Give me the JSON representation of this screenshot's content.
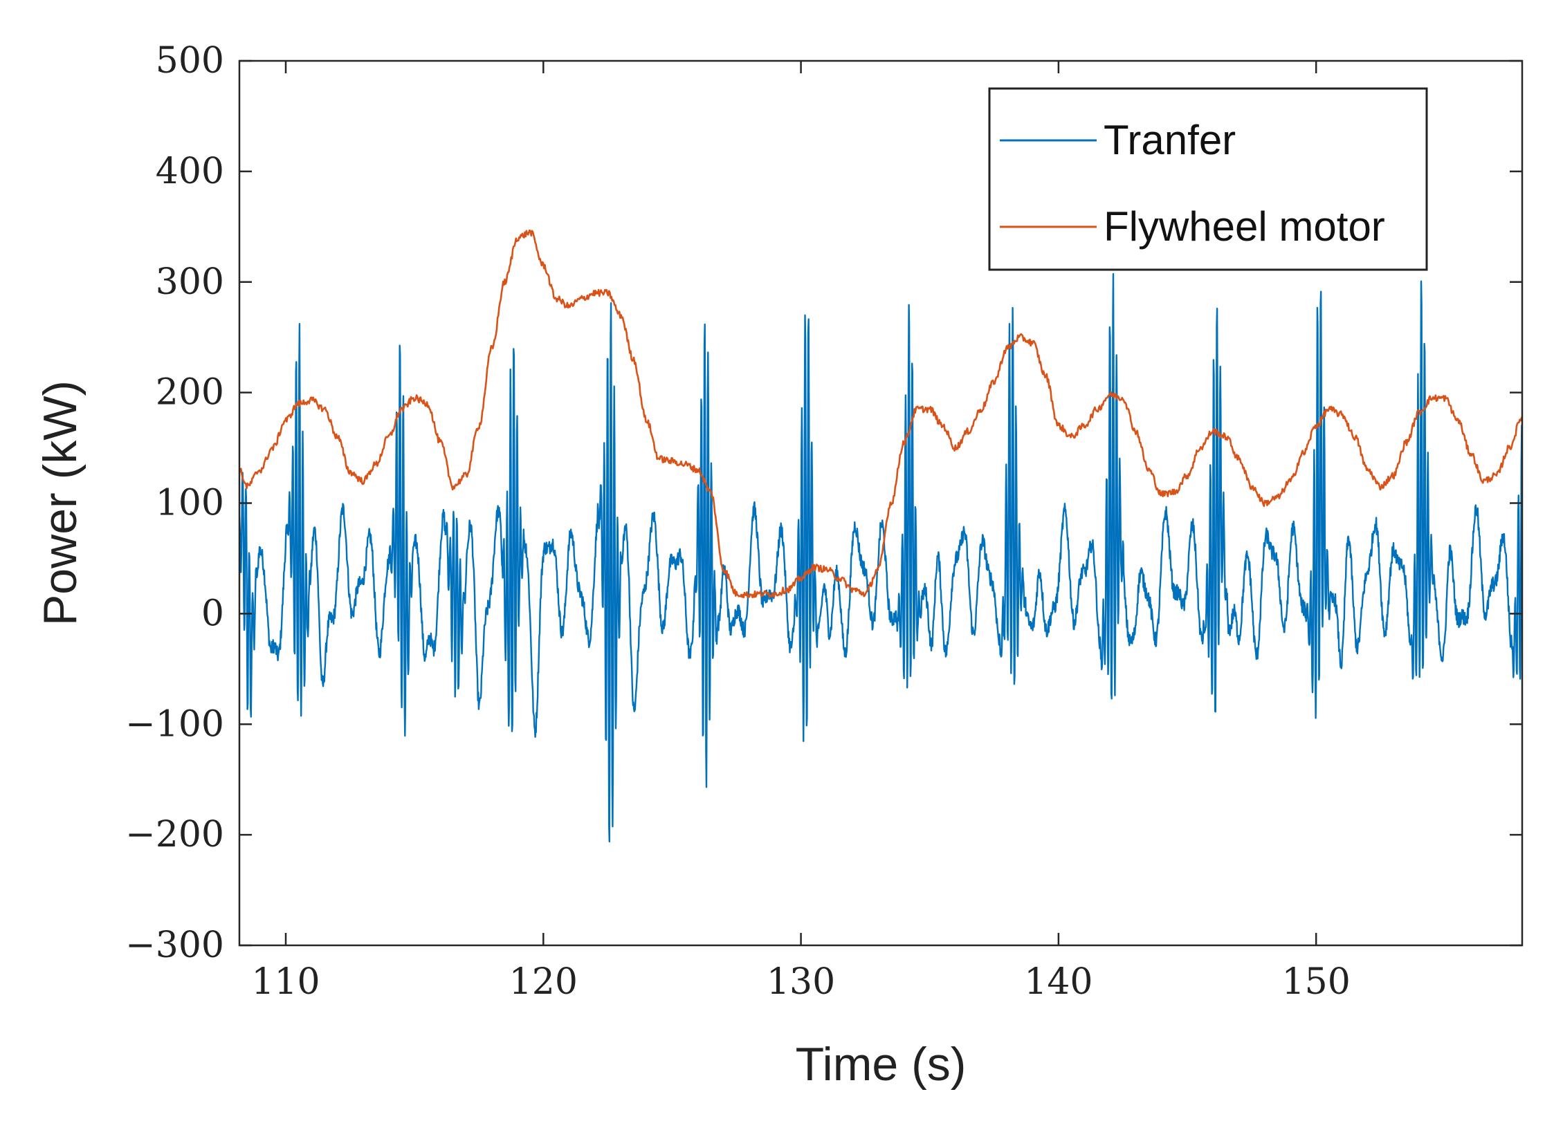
{
  "chart_data": {
    "type": "line",
    "title": "",
    "xlabel": "Time (s)",
    "ylabel": "Power (kW)",
    "xlim": [
      108.2,
      158
    ],
    "ylim": [
      -300,
      500
    ],
    "xticks": [
      110,
      120,
      130,
      140,
      150
    ],
    "xtick_labels": [
      "110",
      "120",
      "130",
      "140",
      "150"
    ],
    "yticks": [
      -300,
      -200,
      -100,
      0,
      100,
      200,
      300,
      400,
      500
    ],
    "ytick_labels": [
      "−300",
      "−200",
      "−100",
      "0",
      "100",
      "200",
      "300",
      "400",
      "500"
    ],
    "grid": false,
    "legend_position": "top-right",
    "series": [
      {
        "name": "Tranfer",
        "color": "#0072BD",
        "period_s": 4.0,
        "spike_times": [
          108.5,
          110.5,
          114.5,
          116.6,
          118.8,
          122.6,
          126.3,
          130.2,
          134.2,
          138.2,
          142.1,
          146.1,
          150.1,
          154.1,
          158
        ],
        "spike_peaks": [
          110,
          268,
          245,
          110,
          275,
          305,
          252,
          257,
          235,
          245,
          295,
          265,
          275,
          270,
          160
        ],
        "spike_troughs": [
          -90,
          -110,
          -110,
          -80,
          -118,
          -220,
          -195,
          -170,
          -140,
          -125,
          -130,
          -125,
          -130,
          -115,
          -90
        ],
        "baseline_range": [
          -30,
          90
        ]
      },
      {
        "name": "Flywheel motor",
        "color": "#D95319",
        "x": [
          108.2,
          108.5,
          109.0,
          109.5,
          110.0,
          110.5,
          111.0,
          111.5,
          112.0,
          112.5,
          113.0,
          113.5,
          114.0,
          114.5,
          115.0,
          115.5,
          116.0,
          116.5,
          117.0,
          117.5,
          118.0,
          118.5,
          119.0,
          119.5,
          120.0,
          120.5,
          121.0,
          121.5,
          122.0,
          122.5,
          123.0,
          123.5,
          124.0,
          124.5,
          125.0,
          125.5,
          126.0,
          126.5,
          127.0,
          127.5,
          128.0,
          128.5,
          129.0,
          129.5,
          130.0,
          130.5,
          131.0,
          131.5,
          132.0,
          132.5,
          133.0,
          133.5,
          134.0,
          134.5,
          135.0,
          135.5,
          136.0,
          136.5,
          137.0,
          137.5,
          138.0,
          138.5,
          139.0,
          139.5,
          140.0,
          140.5,
          141.0,
          141.5,
          142.0,
          142.5,
          143.0,
          143.5,
          144.0,
          144.5,
          145.0,
          145.5,
          146.0,
          146.5,
          147.0,
          147.5,
          148.0,
          148.5,
          149.0,
          149.5,
          150.0,
          150.5,
          151.0,
          151.5,
          152.0,
          152.5,
          153.0,
          153.5,
          154.0,
          154.5,
          155.0,
          155.5,
          156.0,
          156.5,
          157.0,
          157.5,
          158.0
        ],
        "y": [
          130,
          115,
          130,
          150,
          175,
          190,
          193,
          185,
          160,
          128,
          120,
          135,
          160,
          185,
          195,
          190,
          155,
          115,
          125,
          170,
          240,
          300,
          340,
          345,
          315,
          285,
          278,
          285,
          290,
          290,
          270,
          230,
          175,
          140,
          138,
          135,
          130,
          110,
          40,
          18,
          17,
          18,
          18,
          22,
          32,
          42,
          40,
          32,
          22,
          18,
          40,
          100,
          155,
          185,
          185,
          170,
          150,
          165,
          185,
          210,
          240,
          250,
          245,
          215,
          170,
          160,
          170,
          185,
          198,
          195,
          165,
          130,
          108,
          110,
          125,
          150,
          165,
          160,
          140,
          115,
          100,
          105,
          120,
          145,
          170,
          185,
          180,
          160,
          130,
          115,
          125,
          155,
          182,
          195,
          195,
          175,
          145,
          120,
          125,
          150,
          178
        ]
      }
    ]
  }
}
